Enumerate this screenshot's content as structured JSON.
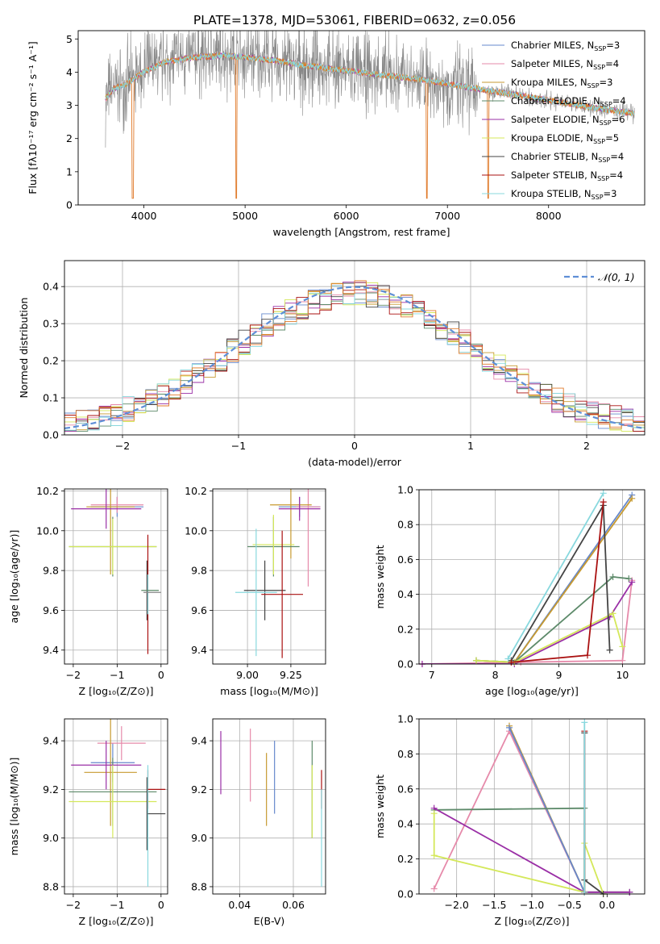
{
  "figure_title": "PLATE=1378, MJD=53061, FIBERID=0632, z=0.056",
  "colors": {
    "c0": "#6688cc",
    "c1": "#e68aaa",
    "c2": "#c79a30",
    "c3": "#5d8a6a",
    "c4": "#9a2fa6",
    "c5": "#d4e85a",
    "c6": "#444444",
    "c7": "#aa1111",
    "c8": "#88d8de",
    "data": "#888888",
    "orange": "#e07a2a",
    "gauss": "#5f8fd6"
  },
  "chart_data": [
    {
      "id": "spectrum",
      "type": "line",
      "xlabel": "wavelength [Angstrom, rest frame]",
      "ylabel": "Flux [fλ10⁻¹⁷ erg cm⁻² s⁻¹ A⁻¹]",
      "xlim": [
        3350,
        8950
      ],
      "ylim": [
        0,
        5.25
      ],
      "xticks": [
        4000,
        5000,
        6000,
        7000,
        8000
      ],
      "yticks": [
        0,
        1,
        2,
        3,
        4,
        5
      ],
      "xtick_labels": [
        "4000",
        "5000",
        "6000",
        "7000",
        "8000"
      ],
      "ytick_labels": [
        "0",
        "1",
        "2",
        "3",
        "4",
        "5"
      ],
      "legend_placement": "top-right",
      "legend": [
        {
          "label": "Chabrier MILES, N",
          "sub": "SSP",
          "tail": "=3",
          "color": "c0"
        },
        {
          "label": "Salpeter MILES, N",
          "sub": "SSP",
          "tail": "=4",
          "color": "c1"
        },
        {
          "label": "Kroupa MILES, N",
          "sub": "SSP",
          "tail": "=3",
          "color": "c2"
        },
        {
          "label": "Chabrier ELODIE, N",
          "sub": "SSP",
          "tail": "=4",
          "color": "c3"
        },
        {
          "label": "Salpeter ELODIE, N",
          "sub": "SSP",
          "tail": "=6",
          "color": "c4"
        },
        {
          "label": "Kroupa ELODIE, N",
          "sub": "SSP",
          "tail": "=5",
          "color": "c5"
        },
        {
          "label": "Chabrier STELIB, N",
          "sub": "SSP",
          "tail": "=4",
          "color": "c6"
        },
        {
          "label": "Salpeter STELIB, N",
          "sub": "SSP",
          "tail": "=4",
          "color": "c7"
        },
        {
          "label": "Kroupa STELIB, N",
          "sub": "SSP",
          "tail": "=3",
          "color": "c8"
        }
      ],
      "continuum": [
        [
          3620,
          3.2
        ],
        [
          3700,
          3.5
        ],
        [
          3800,
          3.6
        ],
        [
          3900,
          3.8
        ],
        [
          4000,
          4.0
        ],
        [
          4200,
          4.3
        ],
        [
          4500,
          4.45
        ],
        [
          4800,
          4.5
        ],
        [
          5000,
          4.45
        ],
        [
          5300,
          4.35
        ],
        [
          5600,
          4.2
        ],
        [
          6000,
          4.05
        ],
        [
          6400,
          3.9
        ],
        [
          6800,
          3.75
        ],
        [
          7200,
          3.55
        ],
        [
          7600,
          3.35
        ],
        [
          8000,
          3.15
        ],
        [
          8400,
          2.95
        ],
        [
          8850,
          2.75
        ]
      ],
      "model_end": 8850
    },
    {
      "id": "residuals",
      "type": "bar",
      "xlabel": "(data-model)/error",
      "ylabel": "Normed distribution",
      "xlim": [
        -2.5,
        2.5
      ],
      "ylim": [
        0,
        0.47
      ],
      "xticks": [
        -2,
        -1,
        0,
        1,
        2
      ],
      "yticks": [
        0,
        0.1,
        0.2,
        0.3,
        0.4
      ],
      "xtick_labels": [
        "−2",
        "−1",
        "0",
        "1",
        "2"
      ],
      "ytick_labels": [
        "0.0",
        "0.1",
        "0.2",
        "0.3",
        "0.4"
      ],
      "legend_placement": "top-right",
      "legend_label": "𝒩(0, 1)",
      "bin_width": 0.1
    },
    {
      "id": "age_vs_Z",
      "type": "scatter",
      "xlabel": "Z [log₁₀(Z/Z⊙)]",
      "ylabel": "age  [log₁₀(age/yr)]",
      "xlim": [
        -2.2,
        0.15
      ],
      "ylim": [
        9.33,
        10.21
      ],
      "xticks": [
        -2,
        -1,
        0
      ],
      "yticks": [
        9.4,
        9.6,
        9.8,
        10.0,
        10.2
      ],
      "xtick_labels": [
        "−2",
        "−1",
        "0"
      ],
      "ytick_labels": [
        "9.4",
        "9.6",
        "9.8",
        "10.0",
        "10.2"
      ],
      "points": [
        {
          "x": -1.0,
          "y": 10.12,
          "xe": 0.6,
          "ye": 0.05,
          "color": "c0"
        },
        {
          "x": -1.0,
          "y": 10.13,
          "xe": 0.6,
          "ye": 0.04,
          "color": "c1"
        },
        {
          "x": -1.15,
          "y": 10.12,
          "xe": 0.55,
          "ye": 0.34,
          "color": "c2"
        },
        {
          "x": -1.1,
          "y": 9.92,
          "xe": 1.0,
          "ye": 0.15,
          "color": "c3"
        },
        {
          "x": -1.25,
          "y": 10.11,
          "xe": 0.8,
          "ye": 0.1,
          "color": "c4"
        },
        {
          "x": -1.1,
          "y": 9.92,
          "xe": 1.0,
          "ye": 0.14,
          "color": "c5"
        },
        {
          "x": -0.32,
          "y": 9.7,
          "xe": 0.0,
          "ye": 0.15,
          "color": "c6"
        },
        {
          "x": -0.3,
          "y": 9.68,
          "xe": 0.0,
          "ye": 0.3,
          "color": "c7"
        },
        {
          "x": -0.3,
          "y": 9.68,
          "xe": 0.0,
          "ye": 0.1,
          "color": "c8"
        },
        {
          "x": -0.2,
          "y": 9.69,
          "xe": 0.2,
          "ye": 0.0,
          "color": "data"
        },
        {
          "x": -0.25,
          "y": 9.7,
          "xe": 0.2,
          "ye": 0.0,
          "color": "c3"
        }
      ]
    },
    {
      "id": "age_vs_mass",
      "type": "scatter",
      "xlabel": "mass [log₁₀(M/M⊙)]",
      "ylabel": "",
      "xlim": [
        8.8,
        9.45
      ],
      "ylim": [
        9.33,
        10.21
      ],
      "xticks": [
        9.0,
        9.25
      ],
      "yticks": [
        9.4,
        9.6,
        9.8,
        10.0,
        10.2
      ],
      "xtick_labels": [
        "9.00",
        "9.25"
      ],
      "ytick_labels": [
        "9.4",
        "9.6",
        "9.8",
        "10.0",
        "10.2"
      ],
      "points": [
        {
          "x": 9.3,
          "y": 10.12,
          "xe": 0.12,
          "ye": 0.05,
          "color": "c0"
        },
        {
          "x": 9.35,
          "y": 10.12,
          "xe": 0.07,
          "ye": 0.4,
          "color": "c1"
        },
        {
          "x": 9.25,
          "y": 10.13,
          "xe": 0.12,
          "ye": 0.27,
          "color": "c2"
        },
        {
          "x": 9.15,
          "y": 9.92,
          "xe": 0.15,
          "ye": 0.15,
          "color": "c3"
        },
        {
          "x": 9.3,
          "y": 10.11,
          "xe": 0.12,
          "ye": 0.06,
          "color": "c4"
        },
        {
          "x": 9.15,
          "y": 9.93,
          "xe": 0.12,
          "ye": 0.15,
          "color": "c5"
        },
        {
          "x": 9.1,
          "y": 9.7,
          "xe": 0.12,
          "ye": 0.15,
          "color": "c6"
        },
        {
          "x": 9.2,
          "y": 9.68,
          "xe": 0.12,
          "ye": 0.32,
          "color": "c7"
        },
        {
          "x": 9.05,
          "y": 9.69,
          "xe": 0.12,
          "ye": 0.32,
          "color": "c8"
        }
      ]
    },
    {
      "id": "mass_weight_vs_age",
      "type": "line",
      "xlabel": "age  [log₁₀(age/yr)]",
      "ylabel": "mass weight",
      "xlim": [
        6.8,
        10.35
      ],
      "ylim": [
        0,
        1.0
      ],
      "xticks": [
        7,
        8,
        9,
        10
      ],
      "yticks": [
        0,
        0.2,
        0.4,
        0.6,
        0.8,
        1.0
      ],
      "xtick_labels": [
        "7",
        "8",
        "9",
        "10"
      ],
      "ytick_labels": [
        "0.0",
        "0.2",
        "0.4",
        "0.6",
        "0.8",
        "1.0"
      ],
      "series": [
        {
          "color": "c0",
          "x": [
            7.7,
            8.3,
            10.15
          ],
          "y": [
            0.02,
            0.01,
            0.97
          ]
        },
        {
          "color": "c1",
          "x": [
            6.85,
            8.4,
            10.0,
            10.15
          ],
          "y": [
            0.0,
            0.01,
            0.02,
            0.48
          ]
        },
        {
          "color": "c2",
          "x": [
            7.7,
            8.3,
            10.15
          ],
          "y": [
            0.02,
            0.01,
            0.95
          ]
        },
        {
          "color": "c3",
          "x": [
            7.7,
            8.3,
            9.85,
            10.1
          ],
          "y": [
            0.02,
            0.01,
            0.5,
            0.49
          ]
        },
        {
          "color": "c4",
          "x": [
            6.85,
            8.3,
            9.8,
            10.15
          ],
          "y": [
            0.0,
            0.0,
            0.27,
            0.47
          ]
        },
        {
          "color": "c5",
          "x": [
            7.7,
            8.3,
            9.85,
            10.0
          ],
          "y": [
            0.02,
            0.01,
            0.29,
            0.1
          ]
        },
        {
          "color": "c6",
          "x": [
            8.25,
            9.7,
            9.8
          ],
          "y": [
            0.02,
            0.91,
            0.08
          ]
        },
        {
          "color": "c7",
          "x": [
            8.25,
            9.45,
            9.7
          ],
          "y": [
            0.01,
            0.05,
            0.93
          ]
        },
        {
          "color": "c8",
          "x": [
            8.2,
            9.7
          ],
          "y": [
            0.03,
            0.98
          ]
        }
      ]
    },
    {
      "id": "mass_vs_Z",
      "type": "scatter",
      "xlabel": "Z [log₁₀(Z/Z⊙)]",
      "ylabel": "mass [log₁₀(M/M⊙)]",
      "xlim": [
        -2.2,
        0.15
      ],
      "ylim": [
        8.77,
        9.49
      ],
      "xticks": [
        -2,
        -1,
        0
      ],
      "yticks": [
        8.8,
        9.0,
        9.2,
        9.4
      ],
      "xtick_labels": [
        "−2",
        "−1",
        "0"
      ],
      "ytick_labels": [
        "8.8",
        "9.0",
        "9.2",
        "9.4"
      ],
      "points": [
        {
          "x": -1.1,
          "y": 9.31,
          "xe": 0.5,
          "ye": 0.08,
          "color": "c0"
        },
        {
          "x": -0.9,
          "y": 9.39,
          "xe": 0.55,
          "ye": 0.07,
          "color": "c1"
        },
        {
          "x": -1.15,
          "y": 9.27,
          "xe": 0.6,
          "ye": 0.22,
          "color": "c2"
        },
        {
          "x": -1.1,
          "y": 9.19,
          "xe": 1.0,
          "ye": 0.14,
          "color": "c3"
        },
        {
          "x": -1.25,
          "y": 9.3,
          "xe": 0.8,
          "ye": 0.1,
          "color": "c4"
        },
        {
          "x": -1.1,
          "y": 9.15,
          "xe": 1.0,
          "ye": 0.15,
          "color": "c5"
        },
        {
          "x": -0.32,
          "y": 9.1,
          "xe": 0.0,
          "ye": 0.15,
          "color": "c6"
        },
        {
          "x": -0.3,
          "y": 9.2,
          "xe": 0.0,
          "ye": 0.08,
          "color": "c7"
        },
        {
          "x": -0.3,
          "y": 9.05,
          "xe": 0.0,
          "ye": 0.25,
          "color": "c8"
        },
        {
          "x": -0.1,
          "y": 9.2,
          "xe": 0.2,
          "ye": 0.0,
          "color": "c7"
        },
        {
          "x": -0.1,
          "y": 9.1,
          "xe": 0.2,
          "ye": 0.0,
          "color": "c6"
        }
      ]
    },
    {
      "id": "mass_vs_ebv",
      "type": "scatter",
      "xlabel": "E(B-V)",
      "ylabel": "",
      "xlim": [
        0.03,
        0.072
      ],
      "ylim": [
        8.77,
        9.49
      ],
      "xticks": [
        0.04,
        0.06
      ],
      "yticks": [
        8.8,
        9.0,
        9.2,
        9.4
      ],
      "xtick_labels": [
        "0.04",
        "0.06"
      ],
      "ytick_labels": [
        "8.8",
        "9.0",
        "9.2",
        "9.4"
      ],
      "points": [
        {
          "x": 0.033,
          "y": 9.31,
          "xe": 0,
          "ye": 0.13,
          "color": "c4"
        },
        {
          "x": 0.044,
          "y": 9.3,
          "xe": 0,
          "ye": 0.15,
          "color": "c1"
        },
        {
          "x": 0.053,
          "y": 9.25,
          "xe": 0,
          "ye": 0.15,
          "color": "c0"
        },
        {
          "x": 0.05,
          "y": 9.2,
          "xe": 0,
          "ye": 0.15,
          "color": "c2"
        },
        {
          "x": 0.067,
          "y": 9.2,
          "xe": 0,
          "ye": 0.2,
          "color": "c3"
        },
        {
          "x": 0.067,
          "y": 9.15,
          "xe": 0,
          "ye": 0.15,
          "color": "c5"
        },
        {
          "x": 0.0705,
          "y": 9.2,
          "xe": 0,
          "ye": 0.08,
          "color": "c7"
        },
        {
          "x": 0.0705,
          "y": 9.0,
          "xe": 0,
          "ye": 0.2,
          "color": "c8"
        }
      ]
    },
    {
      "id": "mass_weight_vs_Z",
      "type": "line",
      "xlabel": "Z [log₁₀(Z/Z⊙)]",
      "ylabel": "mass weight",
      "xlim": [
        -2.5,
        0.5
      ],
      "ylim": [
        0,
        1.0
      ],
      "xticks": [
        -2.0,
        -1.5,
        -1.0,
        -0.5,
        0.0
      ],
      "yticks": [
        0,
        0.2,
        0.4,
        0.6,
        0.8,
        1.0
      ],
      "xtick_labels": [
        "−2.0",
        "−1.5",
        "−1.0",
        "−0.5",
        "0.0"
      ],
      "ytick_labels": [
        "0.0",
        "0.2",
        "0.4",
        "0.6",
        "0.8",
        "1.0"
      ],
      "series": [
        {
          "color": "c1",
          "x": [
            -2.3,
            -1.3,
            -0.3,
            0.3
          ],
          "y": [
            0.03,
            0.93,
            0.01,
            0.01
          ]
        },
        {
          "color": "c2",
          "x": [
            -1.3,
            -0.3,
            0.3
          ],
          "y": [
            0.96,
            0.01,
            0.01
          ]
        },
        {
          "color": "c0",
          "x": [
            -1.3,
            -0.3,
            0.3
          ],
          "y": [
            0.95,
            0.01,
            0.01
          ]
        },
        {
          "color": "c3",
          "x": [
            -2.3,
            -0.3,
            -0.3
          ],
          "y": [
            0.48,
            0.49,
            0.01
          ]
        },
        {
          "color": "c4",
          "x": [
            -2.3,
            -0.3,
            0.3
          ],
          "y": [
            0.49,
            0.01,
            0.01
          ]
        },
        {
          "color": "c5",
          "x": [
            -2.3,
            -2.3,
            -0.3,
            -0.3,
            -0.05
          ],
          "y": [
            0.46,
            0.22,
            0.01,
            0.29,
            0.0
          ]
        },
        {
          "color": "c6",
          "x": [
            -0.3,
            -0.3,
            -0.05
          ],
          "y": [
            0.92,
            0.08,
            0.0
          ]
        },
        {
          "color": "c7",
          "x": [
            -0.3,
            -0.3
          ],
          "y": [
            0.01,
            0.93
          ]
        },
        {
          "color": "c8",
          "x": [
            -0.3,
            -0.3
          ],
          "y": [
            0.01,
            0.98
          ]
        }
      ]
    }
  ]
}
